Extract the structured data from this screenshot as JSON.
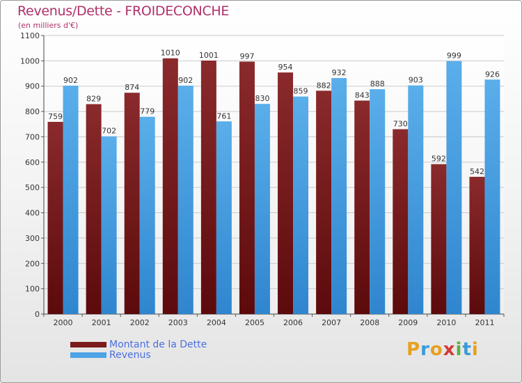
{
  "title": "Revenus/Dette - FROIDECONCHE",
  "subtitle": "(en milliers d'€)",
  "colors": {
    "debt": "#7a1a1c",
    "revenue": "#4ea3e6",
    "grid": "#c9c9c9",
    "title": "#b0306a",
    "legend_text": "#4a6fe0"
  },
  "chart_data": {
    "type": "bar",
    "categories": [
      "2000",
      "2001",
      "2002",
      "2003",
      "2004",
      "2005",
      "2006",
      "2007",
      "2008",
      "2009",
      "2010",
      "2011"
    ],
    "series": [
      {
        "name": "Montant de la Dette",
        "values": [
          759,
          829,
          874,
          1010,
          1001,
          997,
          954,
          882,
          843,
          730,
          592,
          542
        ]
      },
      {
        "name": "Revenus",
        "values": [
          902,
          702,
          779,
          902,
          761,
          830,
          859,
          932,
          888,
          903,
          999,
          926
        ]
      }
    ],
    "ylim": [
      0,
      1100
    ],
    "yticks": [
      0,
      100,
      200,
      300,
      400,
      500,
      600,
      700,
      800,
      900,
      1000,
      1100
    ],
    "grid": true,
    "legend": "bottom-left"
  },
  "legend": [
    {
      "label": "Montant de la Dette"
    },
    {
      "label": "Revenus"
    }
  ],
  "logo": {
    "letters": [
      "P",
      "r",
      "o",
      "x",
      "i",
      "t",
      "i"
    ],
    "colors": [
      "#e8a020",
      "#3a9ad8",
      "#e8a020",
      "#d23a3a",
      "#5ab040",
      "#3a9ad8",
      "#e8a020"
    ]
  }
}
